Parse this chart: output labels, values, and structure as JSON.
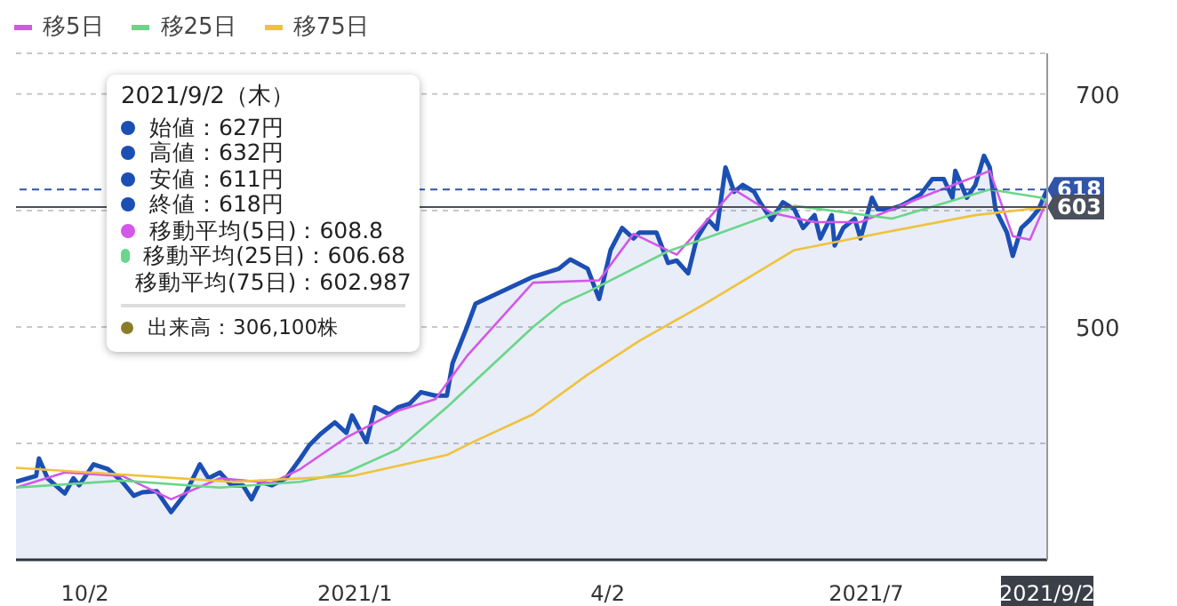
{
  "chart_data": {
    "type": "line",
    "legend": "top left",
    "grid": "y",
    "marker": "none",
    "line_style": "solid",
    "xlim": [
      "2020-09-08",
      "2021-09-02"
    ],
    "xticks": [
      {
        "value": "2020-10-02",
        "label": "10/2"
      },
      {
        "value": "2021-01-04",
        "label": "2021/1"
      },
      {
        "value": "2021-04-02",
        "label": "4/2"
      },
      {
        "value": "2021-07-01",
        "label": "2021/7"
      },
      {
        "value": "2021-09-02",
        "label": "2021/9/2"
      }
    ],
    "ylim": [
      300,
      735
    ],
    "yticks": [
      {
        "value": 300,
        "label": null
      },
      {
        "value": 400,
        "label": null
      },
      500,
      {
        "value": 600,
        "label": null
      },
      700
    ],
    "ref_lines": [
      {
        "axis": "y",
        "value": 618,
        "label": "618",
        "color": "#2f54a8",
        "line_style": "dashed"
      },
      {
        "axis": "y",
        "value": 603,
        "label": "603",
        "color": "#4a505c",
        "line_style": "solid"
      }
    ],
    "series": [
      {
        "type": "area",
        "color": "#1c4fb3",
        "x": [
          "2020-09-08",
          "2020-09-15",
          "2020-09-16",
          "2020-09-19",
          "2020-09-25",
          "2020-09-28",
          "2020-09-30",
          "2020-10-05",
          "2020-10-10",
          "2020-10-15",
          "2020-10-19",
          "2020-10-22",
          "2020-10-27",
          "2020-11-01",
          "2020-11-06",
          "2020-11-11",
          "2020-11-14",
          "2020-11-18",
          "2020-11-22",
          "2020-11-26",
          "2020-11-29",
          "2020-12-02",
          "2020-12-06",
          "2020-12-11",
          "2020-12-16",
          "2020-12-19",
          "2020-12-23",
          "2020-12-28",
          "2021-01-01",
          "2021-01-03",
          "2021-01-08",
          "2021-01-11",
          "2021-01-16",
          "2021-01-19",
          "2021-01-23",
          "2021-01-27",
          "2021-02-01",
          "2021-02-05",
          "2021-02-07",
          "2021-02-12",
          "2021-02-15",
          "2021-03-07",
          "2021-03-16",
          "2021-03-20",
          "2021-03-26",
          "2021-03-30",
          "2021-04-03",
          "2021-04-07",
          "2021-04-11",
          "2021-04-13",
          "2021-04-19",
          "2021-04-23",
          "2021-04-26",
          "2021-04-30",
          "2021-05-03",
          "2021-05-07",
          "2021-05-10",
          "2021-05-13",
          "2021-05-16",
          "2021-05-19",
          "2021-05-23",
          "2021-05-25",
          "2021-05-29",
          "2021-06-02",
          "2021-06-06",
          "2021-06-09",
          "2021-06-13",
          "2021-06-15",
          "2021-06-19",
          "2021-06-20",
          "2021-06-23",
          "2021-06-27",
          "2021-06-29",
          "2021-07-03",
          "2021-07-05",
          "2021-07-09",
          "2021-07-13",
          "2021-07-16",
          "2021-07-20",
          "2021-07-24",
          "2021-07-28",
          "2021-07-31",
          "2021-08-01",
          "2021-08-05",
          "2021-08-08",
          "2021-08-11",
          "2021-08-13",
          "2021-08-15",
          "2021-08-19",
          "2021-08-21",
          "2021-08-24",
          "2021-08-27",
          "2021-08-30",
          "2021-09-02"
        ],
        "values": [
          367,
          372,
          387,
          370,
          357,
          370,
          364,
          382,
          378,
          367,
          355,
          358,
          359,
          341,
          357,
          382,
          370,
          375,
          364,
          364,
          352,
          367,
          364,
          370,
          387,
          398,
          408,
          418,
          409,
          424,
          401,
          431,
          425,
          431,
          434,
          444,
          441,
          441,
          469,
          500,
          520,
          543,
          550,
          558,
          550,
          524,
          566,
          585,
          576,
          581,
          581,
          555,
          557,
          546,
          576,
          592,
          584,
          637,
          616,
          622,
          616,
          607,
          592,
          607,
          601,
          585,
          596,
          576,
          596,
          570,
          585,
          593,
          576,
          611,
          601,
          601,
          604,
          608,
          614,
          627,
          627,
          611,
          634,
          611,
          622,
          647,
          637,
          601,
          581,
          561,
          585,
          592,
          601,
          618
        ]
      },
      {
        "name": "移5日",
        "type": "line",
        "color": "#d357e8",
        "x": [
          "2020-09-08",
          "2020-09-25",
          "2020-10-15",
          "2020-11-01",
          "2020-11-18",
          "2020-12-06",
          "2020-12-16",
          "2021-01-01",
          "2021-01-19",
          "2021-02-01",
          "2021-02-12",
          "2021-03-07",
          "2021-03-30",
          "2021-04-11",
          "2021-04-26",
          "2021-05-16",
          "2021-05-29",
          "2021-06-13",
          "2021-06-29",
          "2021-07-24",
          "2021-08-13",
          "2021-08-21",
          "2021-08-27",
          "2021-09-02"
        ],
        "values": [
          362,
          375,
          372,
          352,
          370,
          366,
          378,
          405,
          428,
          438,
          475,
          538,
          540,
          580,
          562,
          618,
          598,
          590,
          590,
          615,
          634,
          578,
          575,
          609
        ]
      },
      {
        "name": "移25日",
        "type": "line",
        "color": "#6ad68a",
        "x": [
          "2020-09-08",
          "2020-10-15",
          "2020-11-18",
          "2020-12-16",
          "2021-01-01",
          "2021-01-19",
          "2021-02-05",
          "2021-03-07",
          "2021-03-17",
          "2021-03-26",
          "2021-04-23",
          "2021-05-06",
          "2021-06-06",
          "2021-07-10",
          "2021-08-13",
          "2021-08-31",
          "2021-09-02"
        ],
        "values": [
          362,
          368,
          362,
          367,
          375,
          395,
          431,
          500,
          520,
          530,
          565,
          576,
          604,
          593,
          618,
          611,
          607
        ]
      },
      {
        "name": "移75日",
        "type": "line",
        "color": "#f0c23c",
        "x": [
          "2020-09-08",
          "2020-10-10",
          "2020-11-22",
          "2021-01-03",
          "2021-02-05",
          "2021-02-14",
          "2021-03-07",
          "2021-03-26",
          "2021-04-13",
          "2021-05-06",
          "2021-06-06",
          "2021-07-07",
          "2021-08-08",
          "2021-09-02"
        ],
        "values": [
          379,
          374,
          367,
          372,
          390,
          401,
          425,
          459,
          488,
          520,
          566,
          581,
          596,
          603
        ]
      }
    ],
    "annotations": [
      "2021/9/2（木）",
      "始値：627円",
      "高値：632円",
      "安値：611円",
      "終値：618円",
      "移動平均(5日)：608.8",
      "移動平均(25日)：606.68",
      "移動平均(75日)：602.987",
      "出来高：306,100株"
    ]
  }
}
